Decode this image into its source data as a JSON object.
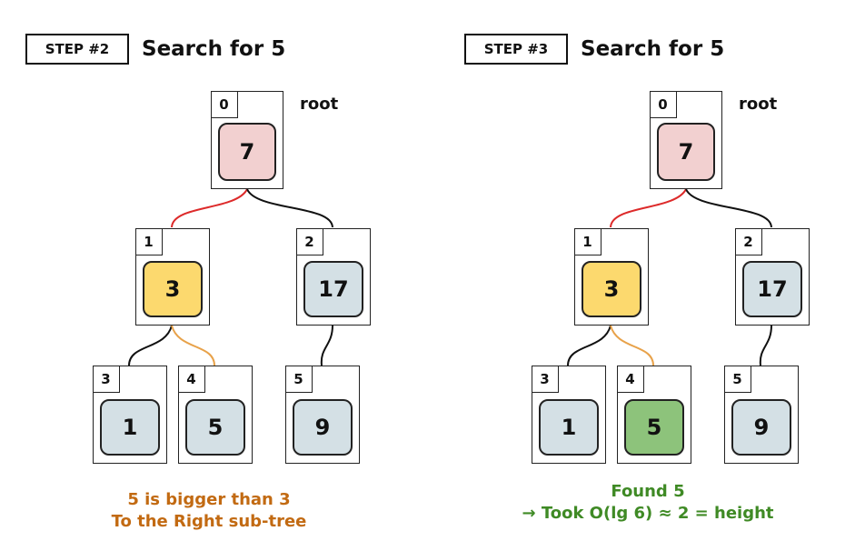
{
  "colors": {
    "root_fill": "#f2d0d0",
    "visited_fill": "#fcd96e",
    "default_fill": "#d4e0e5",
    "found_fill": "#8dc37b",
    "edge_default": "#111111",
    "edge_root_path": "#dd2a2a",
    "edge_search_path": "#e8a24a",
    "caption_left": "#c26a12",
    "caption_right": "#3f8a25"
  },
  "panels": [
    {
      "step_label": "STEP #2",
      "title": "Search for 5",
      "root_label": "root",
      "nodes": [
        {
          "index": "0",
          "value": "7",
          "fill": "root"
        },
        {
          "index": "1",
          "value": "3",
          "fill": "visited"
        },
        {
          "index": "2",
          "value": "17",
          "fill": "default"
        },
        {
          "index": "3",
          "value": "1",
          "fill": "default"
        },
        {
          "index": "4",
          "value": "5",
          "fill": "default"
        },
        {
          "index": "5",
          "value": "9",
          "fill": "default"
        }
      ],
      "caption_lines": [
        "5 is bigger than 3",
        "To the Right sub-tree"
      ]
    },
    {
      "step_label": "STEP #3",
      "title": "Search for 5",
      "root_label": "root",
      "nodes": [
        {
          "index": "0",
          "value": "7",
          "fill": "root"
        },
        {
          "index": "1",
          "value": "3",
          "fill": "visited"
        },
        {
          "index": "2",
          "value": "17",
          "fill": "default"
        },
        {
          "index": "3",
          "value": "1",
          "fill": "default"
        },
        {
          "index": "4",
          "value": "5",
          "fill": "found"
        },
        {
          "index": "5",
          "value": "9",
          "fill": "default"
        }
      ],
      "caption_lines": [
        "Found 5",
        "→ Took O(lg 6) ≈ 2 = height"
      ]
    }
  ]
}
